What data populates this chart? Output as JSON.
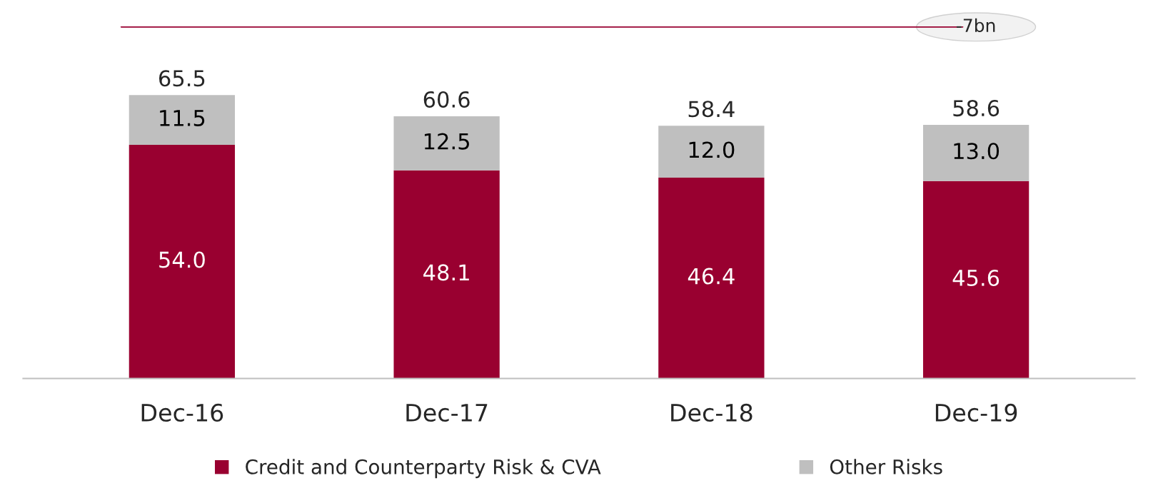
{
  "chart_data": {
    "type": "bar",
    "stacked": true,
    "categories": [
      "Dec-16",
      "Dec-17",
      "Dec-18",
      "Dec-19"
    ],
    "series": [
      {
        "name": "Credit and Counterparty Risk & CVA",
        "color": "#990030",
        "values": [
          54.0,
          48.1,
          46.4,
          45.6
        ],
        "value_labels": [
          "54.0",
          "48.1",
          "46.4",
          "45.6"
        ]
      },
      {
        "name": "Other Risks",
        "color": "#bfbfbf",
        "values": [
          11.5,
          12.5,
          12.0,
          13.0
        ],
        "value_labels": [
          "11.5",
          "12.5",
          "12.0",
          "13.0"
        ]
      }
    ],
    "totals": [
      "65.5",
      "60.6",
      "58.4",
      "58.6"
    ],
    "annotations": [
      "-7bn"
    ],
    "legend": "bottom",
    "grid": false
  }
}
